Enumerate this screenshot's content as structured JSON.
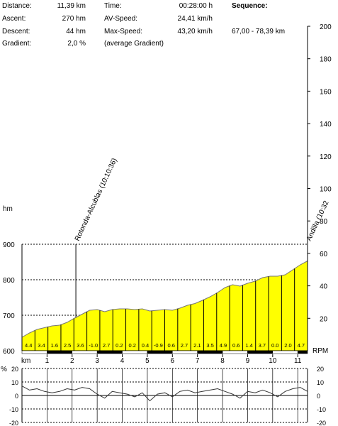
{
  "stats": {
    "distance_label": "Distance:",
    "distance_value": "11,39 km",
    "ascent_label": "Ascent:",
    "ascent_value": "270 hm",
    "descent_label": "Descent:",
    "descent_value": "44 hm",
    "gradient_label": "Gradient:",
    "gradient_value": "2,0 %",
    "time_label": "Time:",
    "time_value": "00:28:00 h",
    "avspeed_label": "AV-Speed:",
    "avspeed_value": "24,41 km/h",
    "maxspeed_label": "Max-Speed:",
    "maxspeed_value": "43,20 km/h",
    "avg_gradient_note": "(average Gradient)",
    "sequence_label": "Sequence:",
    "sequence_value": "67,00 - 78,39 km"
  },
  "chart_data": [
    {
      "type": "area",
      "xlabel": "km",
      "ylabel": "hm",
      "right_axis_label": "RPM",
      "x_range": [
        0,
        11.39
      ],
      "ylim": [
        600,
        900
      ],
      "left_ticks": [
        "600",
        "700",
        "800",
        "900"
      ],
      "right_ticks": [
        "20",
        "40",
        "60",
        "80",
        "100",
        "120",
        "140",
        "160",
        "180",
        "200"
      ],
      "x_ticks": [
        "1",
        "2",
        "3",
        "4",
        "5",
        "6",
        "7",
        "8",
        "9",
        "10",
        "11"
      ],
      "profile": {
        "x": [
          0,
          0.3,
          0.6,
          0.9,
          1.2,
          1.5,
          1.8,
          2.1,
          2.4,
          2.7,
          3.0,
          3.3,
          3.6,
          3.9,
          4.2,
          4.5,
          4.8,
          5.1,
          5.4,
          5.7,
          6.0,
          6.3,
          6.6,
          6.9,
          7.2,
          7.5,
          7.8,
          8.1,
          8.4,
          8.7,
          9.0,
          9.3,
          9.6,
          9.9,
          10.2,
          10.5,
          10.8,
          11.1,
          11.39
        ],
        "elevation": [
          638,
          650,
          660,
          665,
          670,
          672,
          680,
          692,
          703,
          714,
          716,
          710,
          716,
          718,
          718,
          716,
          718,
          712,
          714,
          716,
          714,
          720,
          728,
          733,
          742,
          752,
          764,
          778,
          786,
          782,
          790,
          796,
          806,
          810,
          810,
          814,
          828,
          842,
          853
        ]
      },
      "segment_gradients": [
        "4.4",
        "3.4",
        "1.6",
        "2.5",
        "3.6",
        "-1.0",
        "2.7",
        "0.2",
        "0.2",
        "0.4",
        "-0.9",
        "0.6",
        "2.7",
        "2.1",
        "3.5",
        "4.9",
        "0.6",
        "1.4",
        "3.7",
        "0.0",
        "2.0",
        "4.7"
      ],
      "markers": [
        {
          "label": "Rotonda-Alcublas (10:10:36)",
          "km": 2.15
        },
        {
          "label": "Andilla (10:32",
          "km": 11.39
        }
      ]
    },
    {
      "type": "line",
      "ylabel": "%",
      "ylim": [
        -20,
        20
      ],
      "left_ticks": [
        "-20",
        "-10",
        "0",
        "10",
        "20"
      ],
      "right_ticks": [
        "-20",
        "-10",
        "0",
        "10",
        "20"
      ],
      "x": [
        0,
        0.3,
        0.6,
        0.9,
        1.2,
        1.5,
        1.8,
        2.1,
        2.4,
        2.7,
        3.0,
        3.3,
        3.6,
        3.9,
        4.2,
        4.5,
        4.8,
        5.1,
        5.4,
        5.7,
        6.0,
        6.3,
        6.6,
        6.9,
        7.2,
        7.5,
        7.8,
        8.1,
        8.4,
        8.7,
        9.0,
        9.3,
        9.6,
        9.9,
        10.2,
        10.5,
        10.8,
        11.1,
        11.39
      ],
      "gradient": [
        7,
        4,
        5,
        3,
        2,
        3,
        5,
        4,
        6,
        5,
        1,
        -2,
        3,
        2,
        1,
        -1,
        2,
        -4,
        1,
        2,
        -1,
        3,
        4,
        2,
        3,
        4,
        5,
        3,
        1,
        -2,
        3,
        2,
        4,
        2,
        -1,
        3,
        5,
        6,
        3
      ]
    }
  ],
  "colors": {
    "fill": "#ffff00",
    "grid": "#000000",
    "line": "#333333"
  }
}
